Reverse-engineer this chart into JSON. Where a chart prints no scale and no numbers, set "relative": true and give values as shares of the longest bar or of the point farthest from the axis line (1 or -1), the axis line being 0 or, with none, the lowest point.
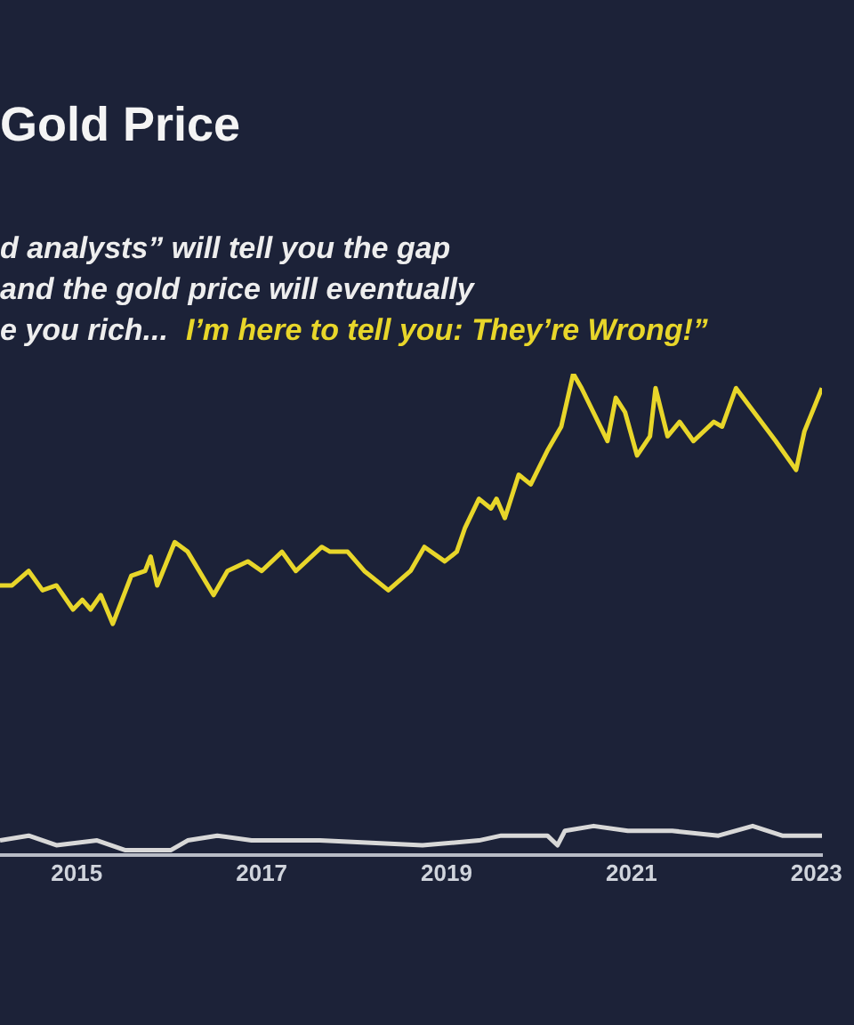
{
  "chart_data": {
    "type": "line",
    "title": "Gold Price",
    "relative": true,
    "grid": false,
    "legend": false,
    "marker": "none",
    "annotations": [
      "d analysts” will tell you the gap",
      "and the gold price will eventually",
      "e you rich...",
      "I’m here to tell you: They’re Wrong!”"
    ],
    "xlim": [
      2014.17,
      2023.06
    ],
    "xticks": [
      2015,
      2017,
      2019,
      2021,
      {
        "value": 2023,
        "label": "2023"
      }
    ],
    "series": [
      {
        "color": "#e8d62a",
        "x": [
          2014.17,
          2014.3,
          2014.48,
          2014.63,
          2014.78,
          2014.96,
          2015.06,
          2015.15,
          2015.26,
          2015.39,
          2015.59,
          2015.74,
          2015.8,
          2015.87,
          2016.06,
          2016.2,
          2016.48,
          2016.63,
          2016.85,
          2017.0,
          2017.22,
          2017.37,
          2017.65,
          2017.74,
          2017.93,
          2018.11,
          2018.37,
          2018.61,
          2018.76,
          2018.98,
          2019.11,
          2019.2,
          2019.35,
          2019.48,
          2019.54,
          2019.63,
          2019.78,
          2019.91,
          2020.09,
          2020.24,
          2020.37,
          2020.46,
          2020.74,
          2020.83,
          2020.93,
          2021.06,
          2021.2,
          2021.26,
          2021.39,
          2021.52,
          2021.67,
          2021.89,
          2021.98,
          2022.13,
          2022.56,
          2022.78,
          2022.87,
          2023.06
        ],
        "values": [
          0.56,
          0.56,
          0.59,
          0.55,
          0.56,
          0.51,
          0.53,
          0.51,
          0.54,
          0.48,
          0.58,
          0.59,
          0.62,
          0.56,
          0.65,
          0.63,
          0.54,
          0.59,
          0.61,
          0.59,
          0.63,
          0.59,
          0.64,
          0.63,
          0.63,
          0.59,
          0.55,
          0.59,
          0.64,
          0.61,
          0.63,
          0.68,
          0.74,
          0.72,
          0.74,
          0.7,
          0.79,
          0.77,
          0.84,
          0.89,
          1.0,
          0.97,
          0.86,
          0.95,
          0.92,
          0.83,
          0.87,
          0.97,
          0.87,
          0.9,
          0.86,
          0.9,
          0.89,
          0.97,
          0.86,
          0.8,
          0.88,
          0.97
        ]
      },
      {
        "color": "#d8d8d8",
        "x": [
          2014.17,
          2014.48,
          2014.78,
          2015.22,
          2015.52,
          2016.02,
          2016.2,
          2016.52,
          2016.89,
          2017.63,
          2018.74,
          2019.35,
          2019.59,
          2020.09,
          2020.2,
          2020.28,
          2020.59,
          2020.96,
          2021.44,
          2021.94,
          2022.31,
          2022.63,
          2023.06
        ],
        "values": [
          0.03,
          0.04,
          0.02,
          0.03,
          0.01,
          0.01,
          0.03,
          0.04,
          0.03,
          0.03,
          0.02,
          0.03,
          0.04,
          0.04,
          0.02,
          0.05,
          0.06,
          0.05,
          0.05,
          0.04,
          0.06,
          0.04,
          0.04
        ]
      }
    ]
  }
}
